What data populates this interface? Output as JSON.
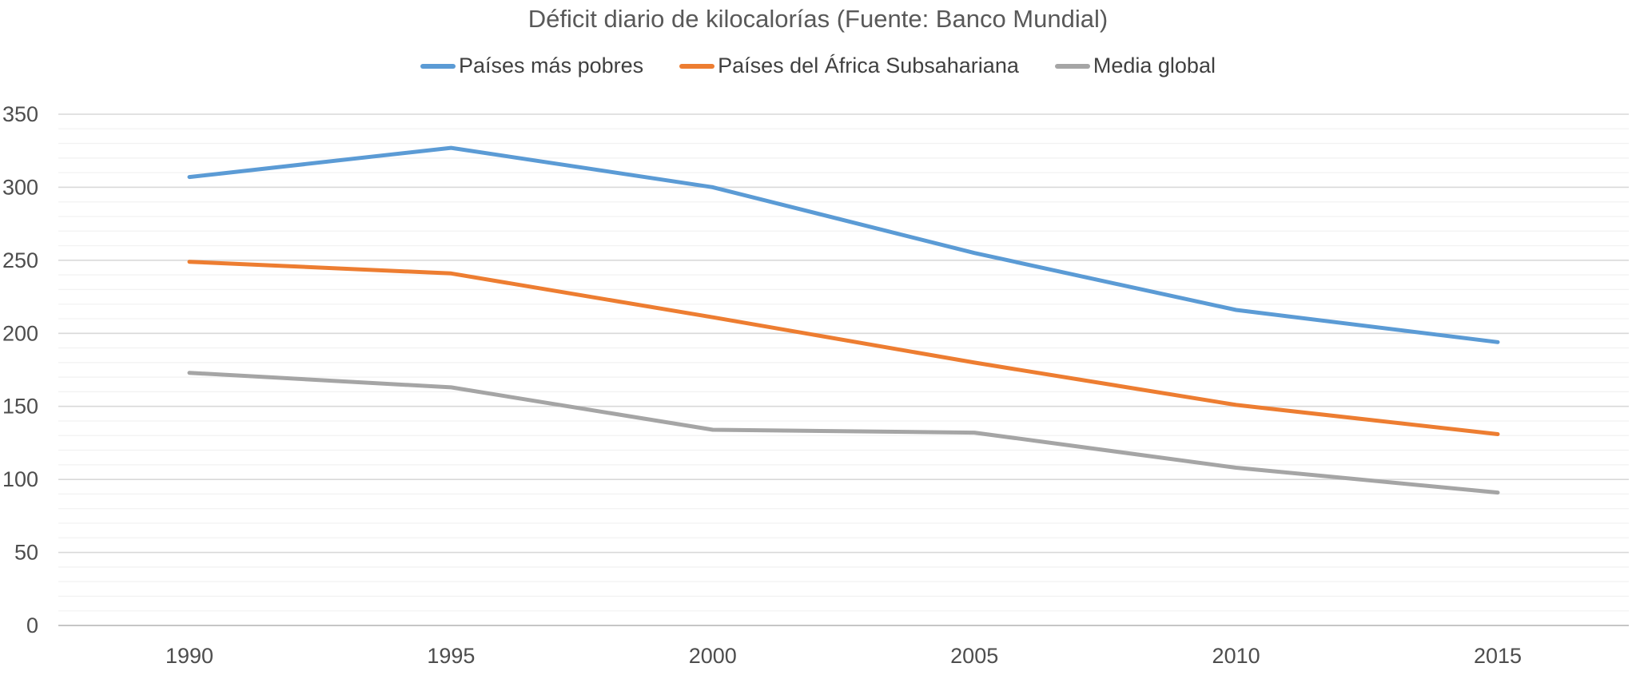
{
  "chart_data": {
    "type": "line",
    "title": "Déficit diario de kilocalorías (Fuente: Banco Mundial)",
    "categories": [
      "1990",
      "1995",
      "2000",
      "2005",
      "2010",
      "2015"
    ],
    "series": [
      {
        "name": "Países más pobres",
        "color": "#5B9BD5",
        "values": [
          307,
          327,
          300,
          255,
          216,
          194
        ]
      },
      {
        "name": "Países del África Subsahariana",
        "color": "#ED7D31",
        "values": [
          249,
          241,
          211,
          180,
          151,
          131
        ]
      },
      {
        "name": "Media global",
        "color": "#A5A5A5",
        "values": [
          173,
          163,
          134,
          132,
          108,
          91
        ]
      }
    ],
    "xlabel": "",
    "ylabel": "",
    "ylim": [
      0,
      350
    ],
    "yticks": [
      0,
      50,
      100,
      150,
      200,
      250,
      300,
      350
    ],
    "minor_gridline_interval": 10,
    "major_gridline_interval": 50,
    "grid": true,
    "legend_position": "top"
  },
  "colors": {
    "background": "#ffffff",
    "title_text": "#595959",
    "legend_text": "#404040",
    "tick_text": "#4d4d4d",
    "gridline_minor": "#f2f2f2",
    "gridline_major": "#d9d9d9",
    "axis_line": "#c6c6c6"
  }
}
